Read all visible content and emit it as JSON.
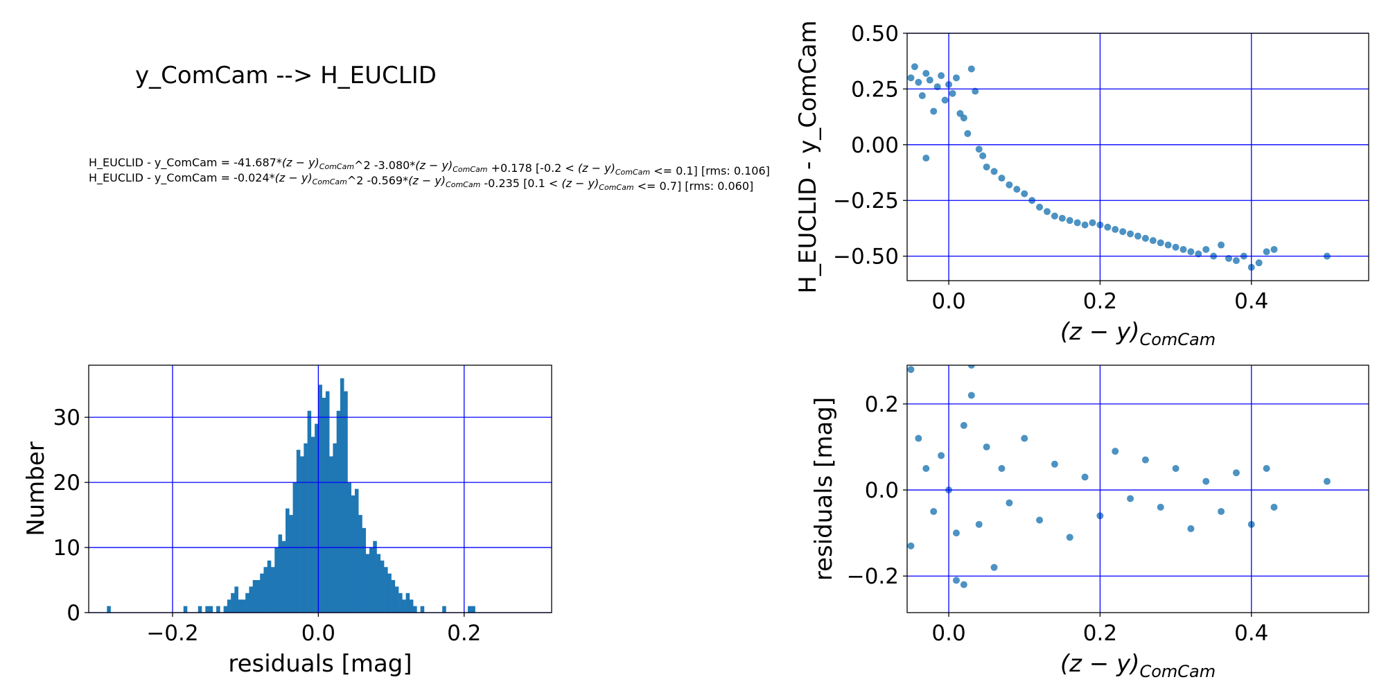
{
  "header": {
    "title": "y_ComCam --> H_EUCLID",
    "equations": [
      {
        "lhs": "H_EUCLID - y_ComCam = -41.687*",
        "mid1": "^2 -3.080*",
        "mid2": " +0.178  [-0.2 < ",
        "mid3": " <= 0.1]  [rms: 0.106]"
      },
      {
        "lhs": "H_EUCLID - y_ComCam = -0.024*",
        "mid1": "^2 -0.569*",
        "mid2": " -0.235  [0.1 < ",
        "mid3": " <= 0.7]  [rms: 0.060]"
      }
    ],
    "color_term": "(z − y)",
    "color_sub": "ComCam"
  },
  "colors": {
    "marker": "#1f77b4",
    "grid": "#0000ff",
    "frame": "#000000"
  },
  "chart_data": [
    {
      "type": "scatter",
      "panel": "top-right",
      "xlabel": "(z − y)",
      "xlabel_sub": "ComCam",
      "ylabel": "H_EUCLID - y_ComCam",
      "xlim": [
        -0.055,
        0.555
      ],
      "ylim": [
        -0.61,
        0.5
      ],
      "xticks": [
        "0.0",
        "0.2",
        "0.4"
      ],
      "xtick_values": [
        0.0,
        0.2,
        0.4
      ],
      "yticks": [
        "0.50",
        "0.25",
        "0.00",
        "−0.25",
        "−0.50"
      ],
      "ytick_values": [
        0.5,
        0.25,
        0.0,
        -0.25,
        -0.5
      ],
      "grid": true,
      "note": "about 800 points; upper-left cluster near (-0.03, 0.25) falling steeply to a dense band near y=-0.35 across x 0.1–0.35, reaching -0.5 at x 0.4; one point at (0.50, -0.50)",
      "points": [
        [
          -0.05,
          0.3
        ],
        [
          -0.045,
          0.35
        ],
        [
          -0.04,
          0.28
        ],
        [
          -0.035,
          0.22
        ],
        [
          -0.03,
          0.32
        ],
        [
          -0.025,
          0.29
        ],
        [
          -0.02,
          0.15
        ],
        [
          -0.015,
          0.26
        ],
        [
          -0.01,
          0.31
        ],
        [
          -0.005,
          0.2
        ],
        [
          0.0,
          0.27
        ],
        [
          0.005,
          0.23
        ],
        [
          0.01,
          0.3
        ],
        [
          0.015,
          0.14
        ],
        [
          0.02,
          0.12
        ],
        [
          0.025,
          0.05
        ],
        [
          0.03,
          0.34
        ],
        [
          0.035,
          0.24
        ],
        [
          0.04,
          -0.02
        ],
        [
          0.045,
          -0.05
        ],
        [
          -0.03,
          -0.06
        ],
        [
          0.05,
          -0.1
        ],
        [
          0.06,
          -0.12
        ],
        [
          0.07,
          -0.15
        ],
        [
          0.08,
          -0.18
        ],
        [
          0.09,
          -0.2
        ],
        [
          0.1,
          -0.22
        ],
        [
          0.11,
          -0.25
        ],
        [
          0.12,
          -0.28
        ],
        [
          0.13,
          -0.3
        ],
        [
          0.14,
          -0.32
        ],
        [
          0.15,
          -0.33
        ],
        [
          0.16,
          -0.34
        ],
        [
          0.17,
          -0.35
        ],
        [
          0.18,
          -0.36
        ],
        [
          0.19,
          -0.35
        ],
        [
          0.2,
          -0.36
        ],
        [
          0.21,
          -0.37
        ],
        [
          0.22,
          -0.38
        ],
        [
          0.23,
          -0.39
        ],
        [
          0.24,
          -0.4
        ],
        [
          0.25,
          -0.41
        ],
        [
          0.26,
          -0.42
        ],
        [
          0.27,
          -0.43
        ],
        [
          0.28,
          -0.44
        ],
        [
          0.29,
          -0.45
        ],
        [
          0.3,
          -0.46
        ],
        [
          0.31,
          -0.47
        ],
        [
          0.32,
          -0.48
        ],
        [
          0.33,
          -0.49
        ],
        [
          0.34,
          -0.47
        ],
        [
          0.35,
          -0.5
        ],
        [
          0.36,
          -0.45
        ],
        [
          0.37,
          -0.51
        ],
        [
          0.38,
          -0.52
        ],
        [
          0.39,
          -0.5
        ],
        [
          0.4,
          -0.55
        ],
        [
          0.41,
          -0.53
        ],
        [
          0.42,
          -0.48
        ],
        [
          0.43,
          -0.47
        ],
        [
          0.5,
          -0.5
        ]
      ]
    },
    {
      "type": "bar",
      "panel": "bottom-left",
      "xlabel": "residuals [mag]",
      "ylabel": "Number",
      "xlim": [
        -0.315,
        0.32
      ],
      "ylim": [
        0,
        38
      ],
      "xticks": [
        "−0.2",
        "0.0",
        "0.2"
      ],
      "xtick_values": [
        -0.2,
        0.0,
        0.2
      ],
      "yticks": [
        "0",
        "10",
        "20",
        "30"
      ],
      "ytick_values": [
        0,
        10,
        20,
        30
      ],
      "grid": true,
      "bin_start": -0.29,
      "bin_width": 0.005,
      "values": [
        1,
        0,
        0,
        0,
        0,
        0,
        0,
        0,
        0,
        0,
        0,
        0,
        0,
        0,
        0,
        0,
        0,
        0,
        0,
        0,
        0,
        1,
        0,
        0,
        0,
        1,
        0,
        1,
        1,
        0,
        1,
        0,
        1,
        2,
        3,
        4,
        2,
        2,
        3,
        4,
        5,
        5,
        6,
        7,
        8,
        7,
        10,
        12,
        11,
        16,
        15,
        20,
        25,
        24,
        26,
        31,
        27,
        29,
        35,
        33,
        34,
        24,
        26,
        31,
        36,
        34,
        20,
        18,
        19,
        15,
        13,
        9,
        10,
        11,
        9,
        8,
        7,
        6,
        5,
        4,
        3,
        2,
        3,
        2,
        1,
        0,
        1,
        0,
        0,
        0,
        0,
        0,
        1,
        0,
        0,
        0,
        0,
        0,
        0,
        1,
        1
      ]
    },
    {
      "type": "scatter",
      "panel": "bottom-right",
      "xlabel": "(z − y)",
      "xlabel_sub": "ComCam",
      "ylabel": "residuals [mag]",
      "xlim": [
        -0.055,
        0.555
      ],
      "ylim": [
        -0.285,
        0.29
      ],
      "xticks": [
        "0.0",
        "0.2",
        "0.4"
      ],
      "xtick_values": [
        0.0,
        0.2,
        0.4
      ],
      "yticks": [
        "0.2",
        "0.0",
        "−0.2"
      ],
      "ytick_values": [
        0.2,
        0.0,
        -0.2
      ],
      "grid": true,
      "note": "about 800 points scattered around zero, mostly within ±0.15, densest for x 0.1–0.3",
      "points": [
        [
          -0.05,
          0.28
        ],
        [
          -0.04,
          0.12
        ],
        [
          -0.03,
          0.05
        ],
        [
          -0.02,
          -0.05
        ],
        [
          -0.01,
          0.08
        ],
        [
          0.0,
          0.0
        ],
        [
          0.01,
          -0.1
        ],
        [
          0.02,
          0.15
        ],
        [
          0.03,
          0.29
        ],
        [
          0.03,
          0.22
        ],
        [
          0.04,
          -0.08
        ],
        [
          0.05,
          0.1
        ],
        [
          0.06,
          -0.18
        ],
        [
          0.07,
          0.05
        ],
        [
          0.08,
          -0.03
        ],
        [
          0.1,
          0.12
        ],
        [
          0.12,
          -0.07
        ],
        [
          0.14,
          0.06
        ],
        [
          0.16,
          -0.11
        ],
        [
          0.18,
          0.03
        ],
        [
          0.2,
          -0.06
        ],
        [
          0.22,
          0.09
        ],
        [
          0.24,
          -0.02
        ],
        [
          0.26,
          0.07
        ],
        [
          0.28,
          -0.04
        ],
        [
          0.3,
          0.05
        ],
        [
          0.32,
          -0.09
        ],
        [
          0.34,
          0.02
        ],
        [
          0.36,
          -0.05
        ],
        [
          0.38,
          0.04
        ],
        [
          0.4,
          -0.08
        ],
        [
          0.42,
          0.05
        ],
        [
          0.43,
          -0.04
        ],
        [
          0.5,
          0.02
        ],
        [
          0.02,
          -0.22
        ],
        [
          -0.05,
          -0.13
        ],
        [
          0.01,
          -0.21
        ]
      ]
    }
  ]
}
